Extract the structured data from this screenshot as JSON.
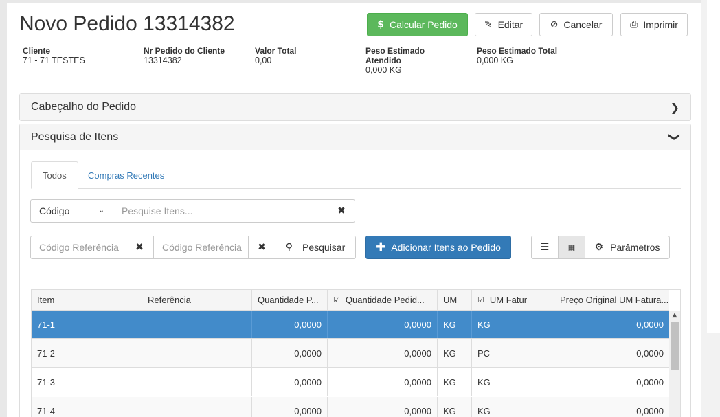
{
  "title": "Novo Pedido 13314382",
  "actions": {
    "calcular": "Calcular Pedido",
    "editar": "Editar",
    "cancelar": "Cancelar",
    "imprimir": "Imprimir"
  },
  "info": [
    {
      "label": "Cliente",
      "value": "71 - 71 TESTES"
    },
    {
      "label": "Nr Pedido do Cliente",
      "value": "13314382"
    },
    {
      "label": "Valor Total",
      "value": "0,00"
    },
    {
      "label": "Peso Estimado Atendido",
      "value": "0,000 KG"
    },
    {
      "label": "Peso Estimado Total",
      "value": "0,000 KG"
    }
  ],
  "panels": {
    "cabecalho": "Cabeçalho do Pedido",
    "pesquisa": "Pesquisa de Itens"
  },
  "tabs": {
    "todos": "Todos",
    "recentes": "Compras Recentes"
  },
  "search": {
    "field_select": "Código",
    "placeholder": "Pesquise Itens...",
    "ref1_placeholder": "Código Referência",
    "ref2_placeholder": "Código Referência",
    "pesquisar": "Pesquisar",
    "adicionar": "Adicionar Itens ao Pedido",
    "parametros": "Parâmetros"
  },
  "table": {
    "headers": [
      "Item",
      "Referência",
      "Quantidade P...",
      "Quantidade Pedid...",
      "UM",
      "UM Fatur",
      "Preço Original UM Fatura..."
    ],
    "rows": [
      {
        "item": "71-1",
        "ref": "",
        "qtd_p": "0,0000",
        "qtd_ped": "0,0000",
        "um": "KG",
        "um_fat": "KG",
        "preco": "0,0000"
      },
      {
        "item": "71-2",
        "ref": "",
        "qtd_p": "0,0000",
        "qtd_ped": "0,0000",
        "um": "KG",
        "um_fat": "PC",
        "preco": "0,0000"
      },
      {
        "item": "71-3",
        "ref": "",
        "qtd_p": "0,0000",
        "qtd_ped": "0,0000",
        "um": "KG",
        "um_fat": "KG",
        "preco": "0,0000"
      },
      {
        "item": "71-4",
        "ref": "",
        "qtd_p": "0,0000",
        "qtd_ped": "0,0000",
        "um": "KG",
        "um_fat": "KG",
        "preco": "0,0000"
      }
    ]
  },
  "icons": {
    "dollar": "dollar-icon",
    "pencil": "pencil-icon",
    "ban": "ban-icon",
    "print": "print-icon"
  }
}
